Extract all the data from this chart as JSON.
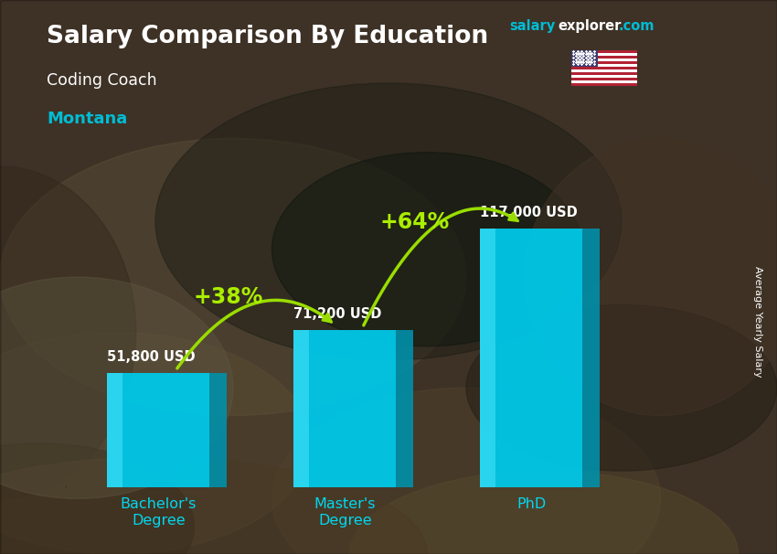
{
  "title": "Salary Comparison By Education",
  "subtitle": "Coding Coach",
  "location": "Montana",
  "ylabel": "Average Yearly Salary",
  "categories": [
    "Bachelor's\nDegree",
    "Master's\nDegree",
    "PhD"
  ],
  "values": [
    51800,
    71200,
    117000
  ],
  "value_labels": [
    "51,800 USD",
    "71,200 USD",
    "117,000 USD"
  ],
  "pct_labels": [
    "+38%",
    "+64%"
  ],
  "bar_color": "#00c8e8",
  "bar_highlight": "#50e8ff",
  "bar_shadow": "#0090aa",
  "title_color": "#ffffff",
  "subtitle_color": "#ffffff",
  "location_color": "#00bcd4",
  "pct_color": "#aaee00",
  "value_label_color": "#ffffff",
  "ylabel_color": "#ffffff",
  "tick_label_color": "#00d8f0",
  "watermark_salary_color": "#00bcd4",
  "watermark_explorer_color": "#ffffff",
  "watermark_com_color": "#00bcd4",
  "bar_positions": [
    1.0,
    3.0,
    5.0
  ],
  "bar_width": 1.1,
  "ylim": [
    0,
    150000
  ],
  "xlim": [
    -0.2,
    6.8
  ],
  "fig_width": 8.5,
  "fig_height": 6.06,
  "bg_colors": [
    "#6b5a3e",
    "#8b7355",
    "#a08060",
    "#5a4a2e",
    "#7a6040"
  ],
  "overlay_alpha": 0.55
}
